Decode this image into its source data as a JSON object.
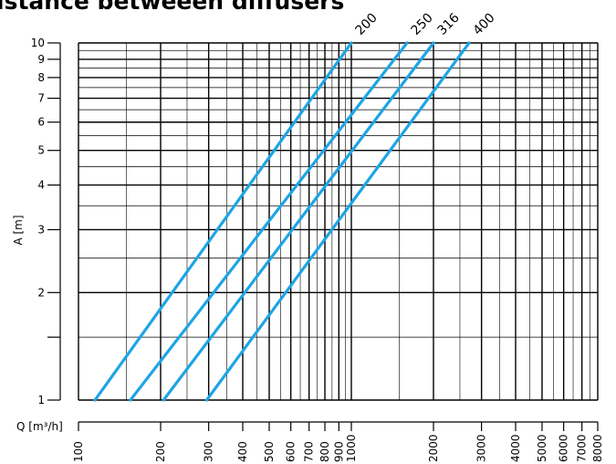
{
  "chart_data": {
    "type": "line",
    "title": "istance betweeen diffusers",
    "xlabel": "Q [m³/h]",
    "ylabel": "A [m]",
    "x_scale": "log",
    "y_scale": "log",
    "xlim": [
      100,
      8000
    ],
    "ylim": [
      1,
      10
    ],
    "grid": true,
    "colors": {
      "series": "#1ea5e3",
      "grid": "#000000"
    },
    "x_ticks": [
      100,
      200,
      300,
      400,
      500,
      600,
      700,
      800,
      900,
      1000,
      2000,
      3000,
      4000,
      5000,
      6000,
      7000,
      8000
    ],
    "x_tick_labels": [
      "100",
      "200",
      "300",
      "400",
      "500",
      "600",
      "700",
      "800",
      "900",
      "1000",
      "2000",
      "3000",
      "4000",
      "5000",
      "6000",
      "7000",
      "8000"
    ],
    "y_ticks": [
      1,
      2,
      3,
      4,
      5,
      6,
      7,
      8,
      9,
      10
    ],
    "y_tick_labels": [
      "1",
      "2",
      "3",
      "4",
      "5",
      "6",
      "7",
      "8",
      "9",
      "10"
    ],
    "series": [
      {
        "name": "200",
        "x": [
          115,
          1000
        ],
        "y": [
          1,
          10
        ]
      },
      {
        "name": "250",
        "x": [
          155,
          1600
        ],
        "y": [
          1,
          10
        ]
      },
      {
        "name": "316",
        "x": [
          205,
          2000
        ],
        "y": [
          1,
          10
        ]
      },
      {
        "name": "400",
        "x": [
          295,
          2700
        ],
        "y": [
          1,
          10
        ]
      }
    ]
  }
}
